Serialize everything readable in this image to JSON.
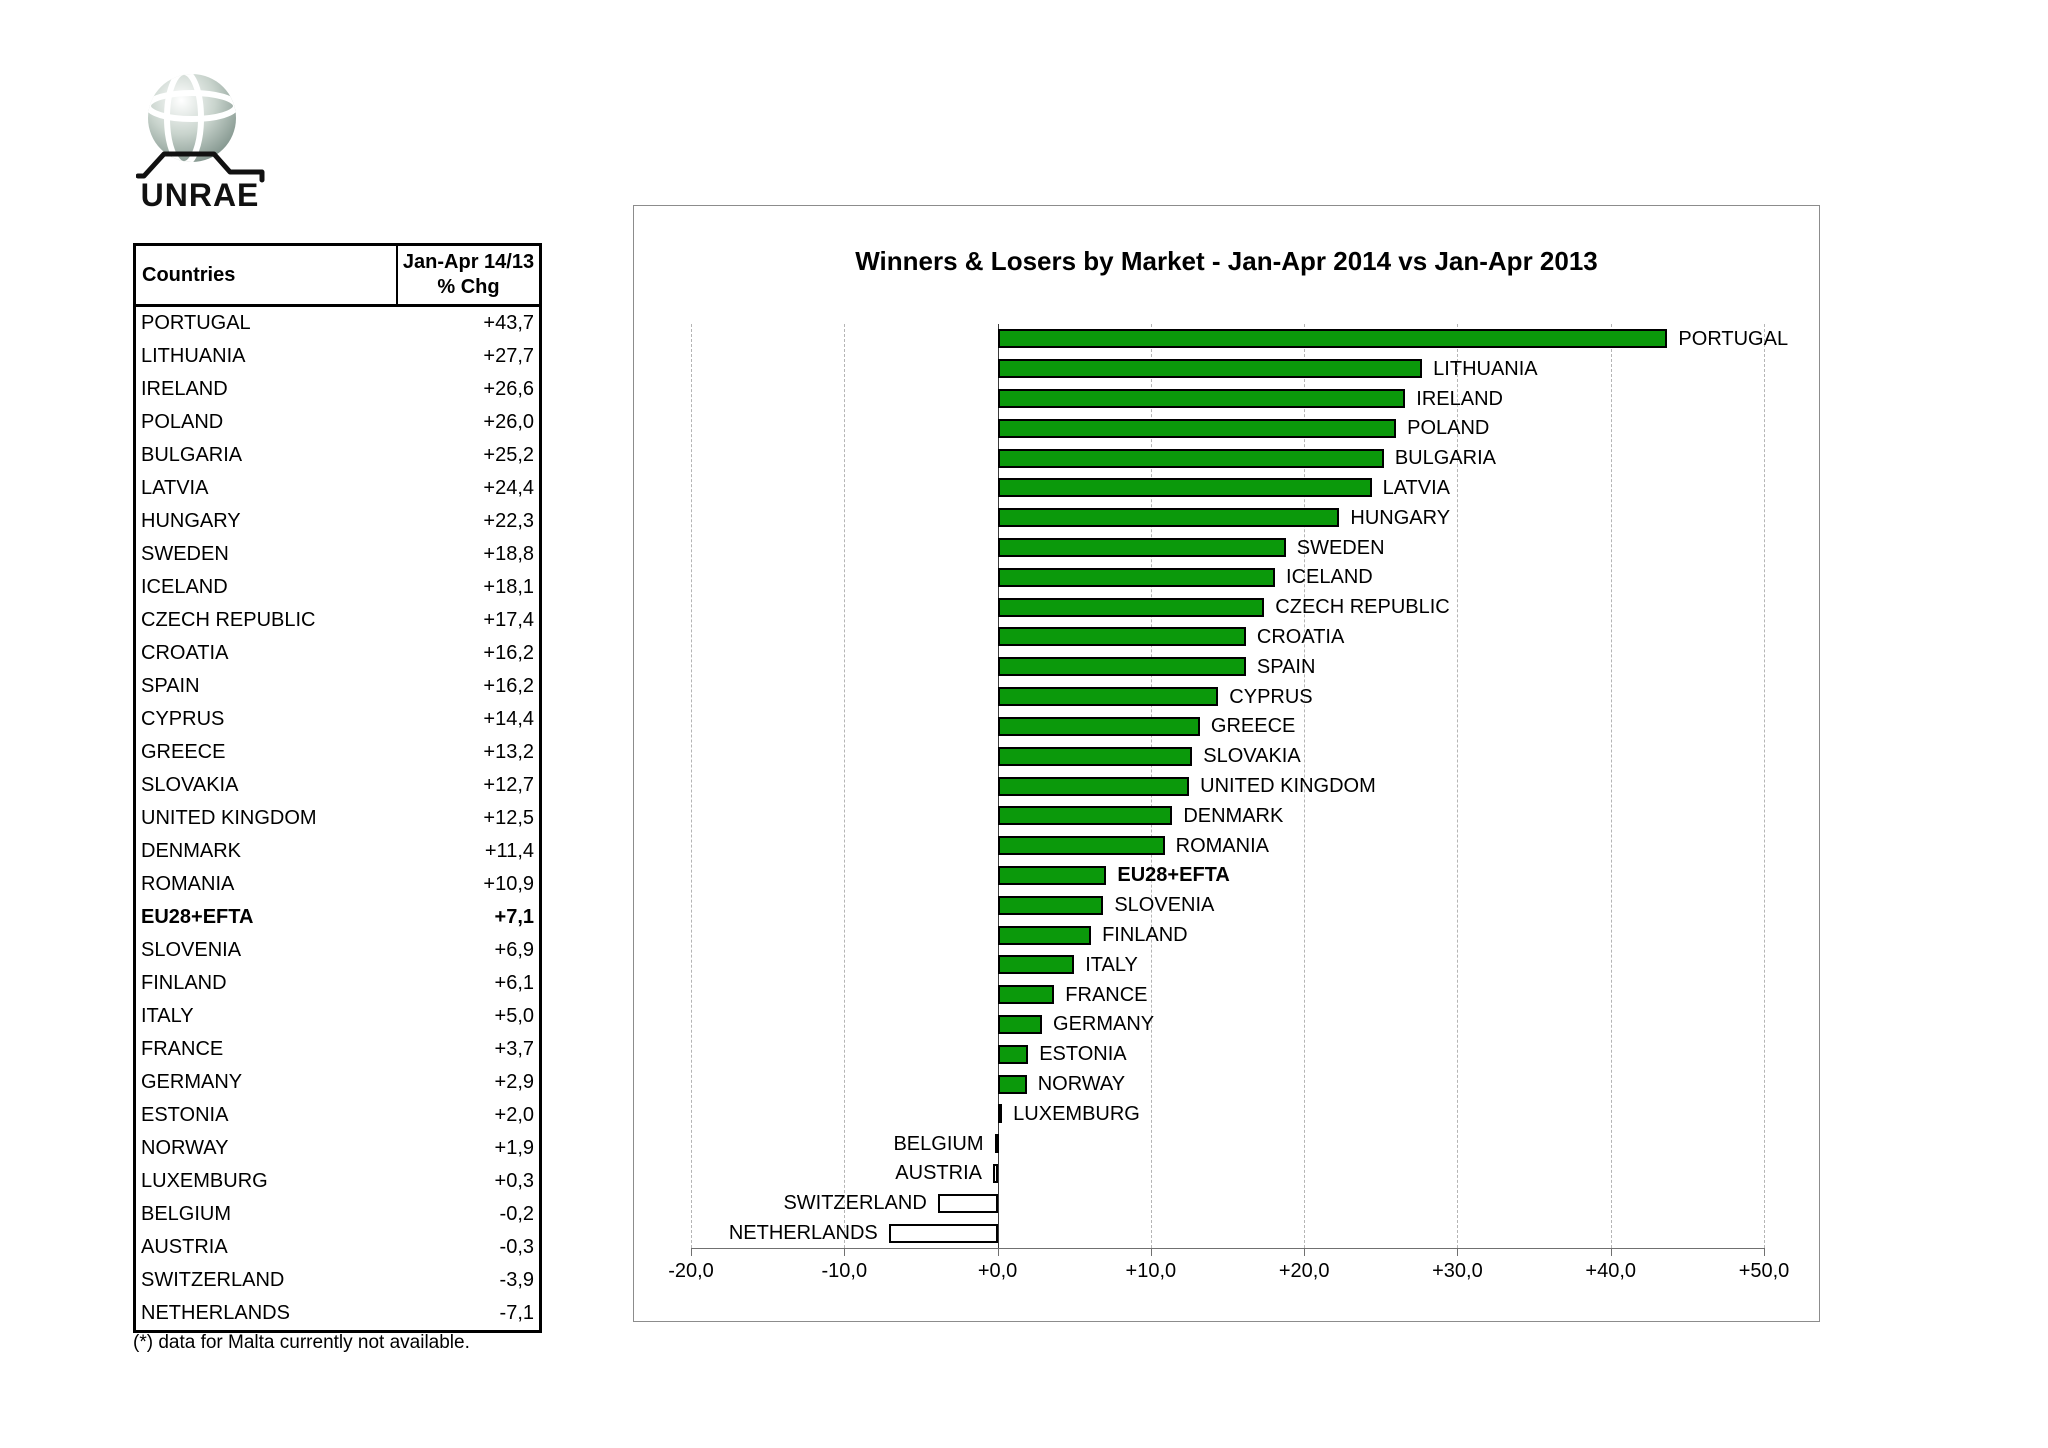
{
  "logo": {
    "brand": "UNRAE"
  },
  "table": {
    "header_country": "Countries",
    "header_value": "Jan-Apr 14/13\n% Chg",
    "rows": [
      {
        "country": "PORTUGAL",
        "value": "+43,7",
        "bold": false
      },
      {
        "country": "LITHUANIA",
        "value": "+27,7",
        "bold": false
      },
      {
        "country": "IRELAND",
        "value": "+26,6",
        "bold": false
      },
      {
        "country": "POLAND",
        "value": "+26,0",
        "bold": false
      },
      {
        "country": "BULGARIA",
        "value": "+25,2",
        "bold": false
      },
      {
        "country": "LATVIA",
        "value": "+24,4",
        "bold": false
      },
      {
        "country": "HUNGARY",
        "value": "+22,3",
        "bold": false
      },
      {
        "country": "SWEDEN",
        "value": "+18,8",
        "bold": false
      },
      {
        "country": "ICELAND",
        "value": "+18,1",
        "bold": false
      },
      {
        "country": "CZECH REPUBLIC",
        "value": "+17,4",
        "bold": false
      },
      {
        "country": "CROATIA",
        "value": "+16,2",
        "bold": false
      },
      {
        "country": "SPAIN",
        "value": "+16,2",
        "bold": false
      },
      {
        "country": "CYPRUS",
        "value": "+14,4",
        "bold": false
      },
      {
        "country": "GREECE",
        "value": "+13,2",
        "bold": false
      },
      {
        "country": "SLOVAKIA",
        "value": "+12,7",
        "bold": false
      },
      {
        "country": "UNITED KINGDOM",
        "value": "+12,5",
        "bold": false
      },
      {
        "country": "DENMARK",
        "value": "+11,4",
        "bold": false
      },
      {
        "country": "ROMANIA",
        "value": "+10,9",
        "bold": false
      },
      {
        "country": "EU28+EFTA",
        "value": "+7,1",
        "bold": true
      },
      {
        "country": "SLOVENIA",
        "value": "+6,9",
        "bold": false
      },
      {
        "country": "FINLAND",
        "value": "+6,1",
        "bold": false
      },
      {
        "country": "ITALY",
        "value": "+5,0",
        "bold": false
      },
      {
        "country": "FRANCE",
        "value": "+3,7",
        "bold": false
      },
      {
        "country": "GERMANY",
        "value": "+2,9",
        "bold": false
      },
      {
        "country": "ESTONIA",
        "value": "+2,0",
        "bold": false
      },
      {
        "country": "NORWAY",
        "value": "+1,9",
        "bold": false
      },
      {
        "country": "LUXEMBURG",
        "value": "+0,3",
        "bold": false
      },
      {
        "country": "BELGIUM",
        "value": "-0,2",
        "bold": false
      },
      {
        "country": "AUSTRIA",
        "value": "-0,3",
        "bold": false
      },
      {
        "country": "SWITZERLAND",
        "value": "-3,9",
        "bold": false
      },
      {
        "country": "NETHERLANDS",
        "value": "-7,1",
        "bold": false
      }
    ]
  },
  "footnote": "(*) data for Malta currently not available.",
  "chart_data": {
    "type": "bar",
    "orientation": "horizontal",
    "title": "Winners & Losers by Market - Jan-Apr 2014 vs Jan-Apr 2013",
    "categories": [
      "PORTUGAL",
      "LITHUANIA",
      "IRELAND",
      "POLAND",
      "BULGARIA",
      "LATVIA",
      "HUNGARY",
      "SWEDEN",
      "ICELAND",
      "CZECH REPUBLIC",
      "CROATIA",
      "SPAIN",
      "CYPRUS",
      "GREECE",
      "SLOVAKIA",
      "UNITED KINGDOM",
      "DENMARK",
      "ROMANIA",
      "EU28+EFTA",
      "SLOVENIA",
      "FINLAND",
      "ITALY",
      "FRANCE",
      "GERMANY",
      "ESTONIA",
      "NORWAY",
      "LUXEMBURG",
      "BELGIUM",
      "AUSTRIA",
      "SWITZERLAND",
      "NETHERLANDS"
    ],
    "values": [
      43.7,
      27.7,
      26.6,
      26.0,
      25.2,
      24.4,
      22.3,
      18.8,
      18.1,
      17.4,
      16.2,
      16.2,
      14.4,
      13.2,
      12.7,
      12.5,
      11.4,
      10.9,
      7.1,
      6.9,
      6.1,
      5.0,
      3.7,
      2.9,
      2.0,
      1.9,
      0.3,
      -0.2,
      -0.3,
      -3.9,
      -7.1
    ],
    "bold_category": "EU28+EFTA",
    "xlim": [
      -20,
      50
    ],
    "xtick_values": [
      -20,
      -10,
      0,
      10,
      20,
      30,
      40,
      50
    ],
    "xtick_labels": [
      "-20,0",
      "-10,0",
      "+0,0",
      "+10,0",
      "+20,0",
      "+30,0",
      "+40,0",
      "+50,0"
    ],
    "grid": true,
    "legend": false,
    "bar_fill_positive": "#0B990B",
    "bar_fill_negative": "#FFFFFF",
    "bar_border": "#000000"
  }
}
